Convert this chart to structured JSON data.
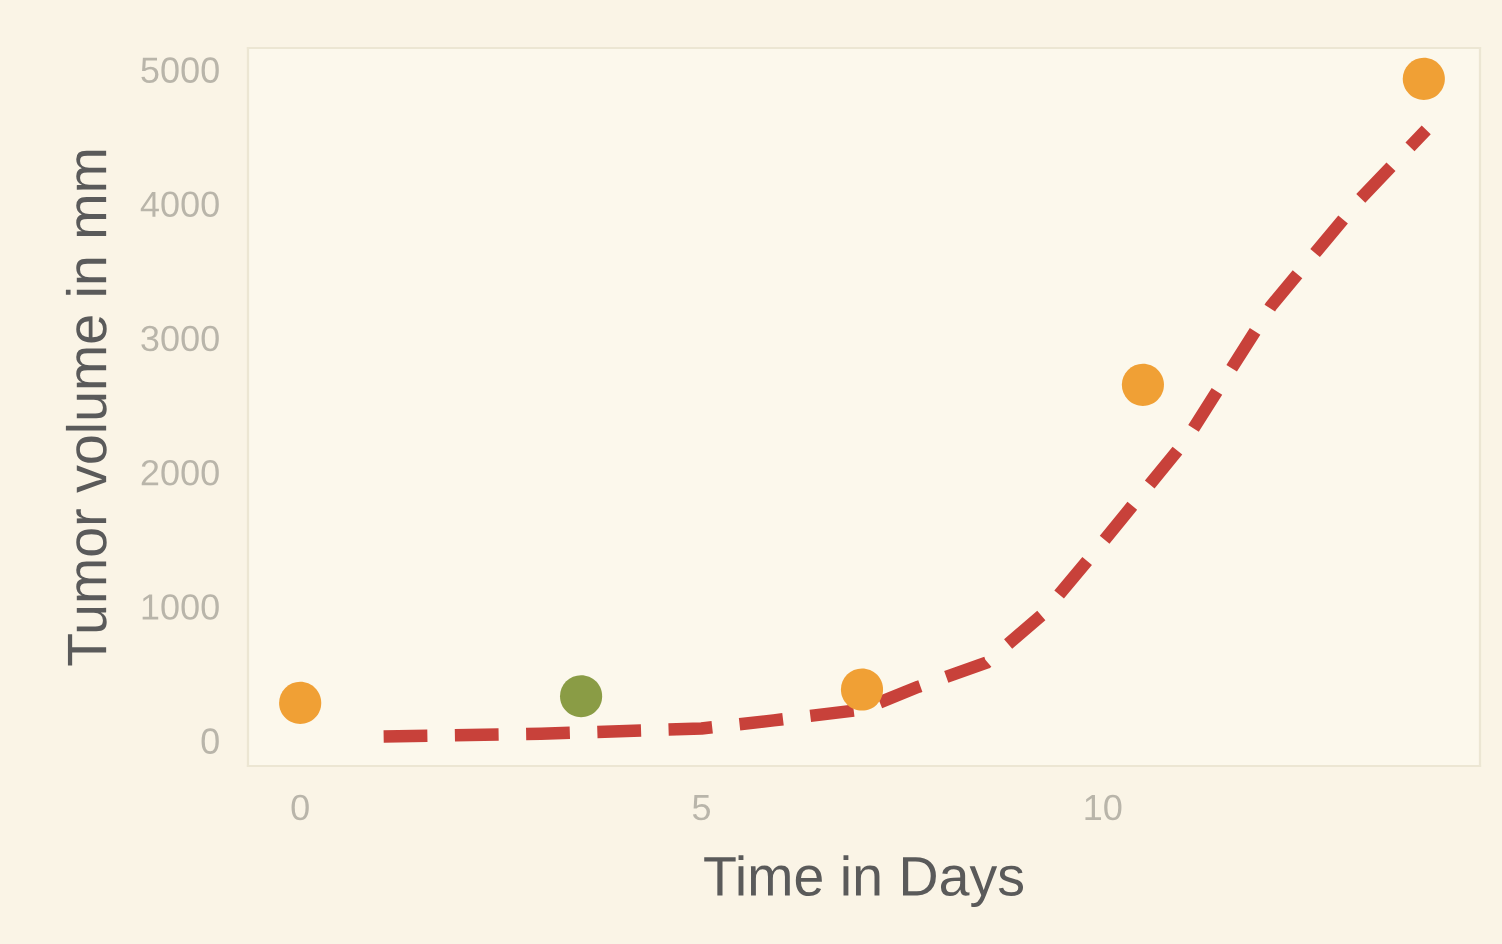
{
  "chart_data": {
    "type": "scatter",
    "xlabel": "Time in Days",
    "ylabel": "Tumor volume in mm",
    "xlim": [
      -0.65,
      14.7
    ],
    "ylim": [
      -190,
      5160
    ],
    "xticks": [
      0,
      5,
      10
    ],
    "yticks": [
      0,
      1000,
      2000,
      3000,
      4000,
      5000
    ],
    "grid": false,
    "legend": false,
    "series": [
      {
        "color": "#f0a035",
        "marker": "circle",
        "x": [
          0,
          7,
          10.5,
          14
        ],
        "values": [
          280,
          380,
          2650,
          4930
        ]
      },
      {
        "color": "#8a9c45",
        "marker": "circle",
        "x": [
          3.5
        ],
        "values": [
          330
        ]
      },
      {
        "type": "line",
        "color": "#c8413a",
        "line_style": "dashed",
        "marker": "none",
        "x": [
          1.04,
          3,
          5,
          5.9,
          7,
          7.7,
          8.55,
          9.25,
          9.85,
          11.04,
          12.1,
          13.2,
          14.03
        ],
        "values": [
          30,
          50,
          90,
          150,
          230,
          400,
          580,
          940,
          1370,
          2240,
          3240,
          4030,
          4550
        ]
      }
    ]
  }
}
